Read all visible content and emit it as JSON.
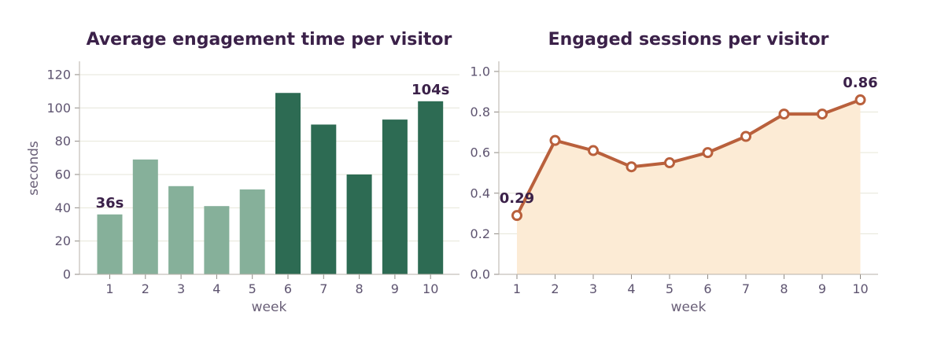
{
  "chart_data": [
    {
      "type": "bar",
      "title": "Average engagement time per visitor",
      "xlabel": "week",
      "ylabel": "seconds",
      "categories": [
        "1",
        "2",
        "3",
        "4",
        "5",
        "6",
        "7",
        "8",
        "9",
        "10"
      ],
      "values": [
        36,
        69,
        53,
        41,
        51,
        109,
        90,
        60,
        93,
        104
      ],
      "ylim": [
        0,
        128
      ],
      "yticks": [
        0,
        20,
        40,
        60,
        80,
        100,
        120
      ],
      "colors": {
        "weeks_1_5": "#86b09a",
        "weeks_6_10": "#2d6b53"
      },
      "annotations": [
        {
          "index": 0,
          "text": "36s"
        },
        {
          "index": 9,
          "text": "104s"
        }
      ],
      "grid": "horizontal",
      "legend": "none"
    },
    {
      "type": "area",
      "title": "Engaged sessions per visitor",
      "xlabel": "week",
      "ylabel": "",
      "x": [
        1,
        2,
        3,
        4,
        5,
        6,
        7,
        8,
        9,
        10
      ],
      "values": [
        0.29,
        0.66,
        0.61,
        0.53,
        0.55,
        0.6,
        0.68,
        0.79,
        0.79,
        0.86
      ],
      "ylim": [
        0,
        1.05
      ],
      "yticks": [
        "0.0",
        "0.2",
        "0.4",
        "0.6",
        "0.8",
        "1.0"
      ],
      "colors": {
        "line": "#b9603c",
        "fill": "#fcebd5"
      },
      "annotations": [
        {
          "index": 0,
          "text": "0.29"
        },
        {
          "index": 9,
          "text": "0.86"
        }
      ],
      "grid": "horizontal",
      "legend": "none"
    }
  ]
}
